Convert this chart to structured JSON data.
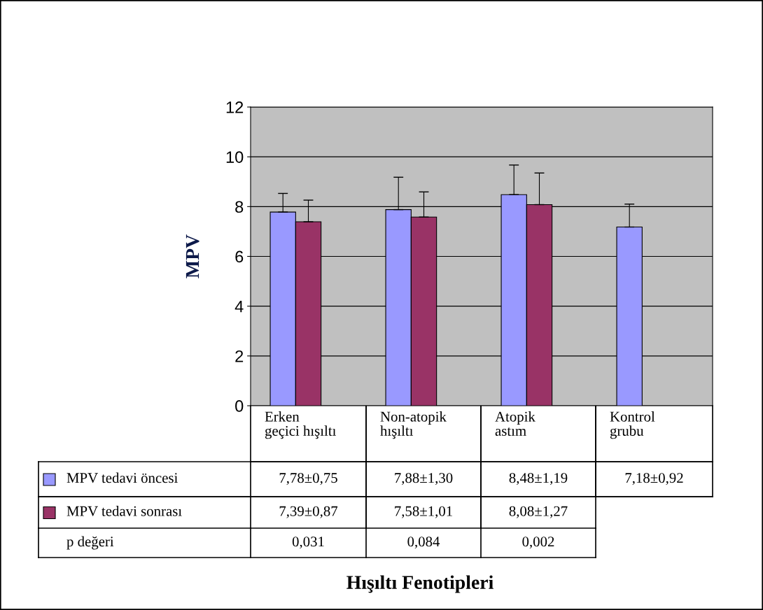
{
  "chart_data": {
    "type": "bar",
    "ylabel": "MPV",
    "categories": [
      "Erken\ngeçici hışıltı",
      "Non-atopik\nhışıltı",
      "Atopik\nastım",
      "Kontrol\ngrubu"
    ],
    "series": [
      {
        "name": "MPV tedavi öncesi",
        "color": "#9999ff",
        "values": [
          7.78,
          7.88,
          8.48,
          7.18
        ],
        "errors": [
          0.75,
          1.3,
          1.19,
          0.92
        ],
        "value_labels": [
          "7,78±0,75",
          "7,88±1,30",
          "8,48±1,19",
          "7,18±0,92"
        ]
      },
      {
        "name": "MPV tedavi sonrası",
        "color": "#993366",
        "values": [
          7.39,
          7.58,
          8.08,
          null
        ],
        "errors": [
          0.87,
          1.01,
          1.27,
          null
        ],
        "value_labels": [
          "7,39±0,87",
          "7,58±1,01",
          "8,08±1,27",
          null
        ]
      }
    ],
    "annotations": [
      "p değeri",
      "0,031",
      "0,084",
      "0,002",
      "Hışıltı Fenotipleri"
    ],
    "ylim": [
      0,
      12
    ],
    "yticks": [
      0,
      2,
      4,
      6,
      8,
      10,
      12
    ],
    "grid": "y",
    "legend": "bottom left"
  }
}
